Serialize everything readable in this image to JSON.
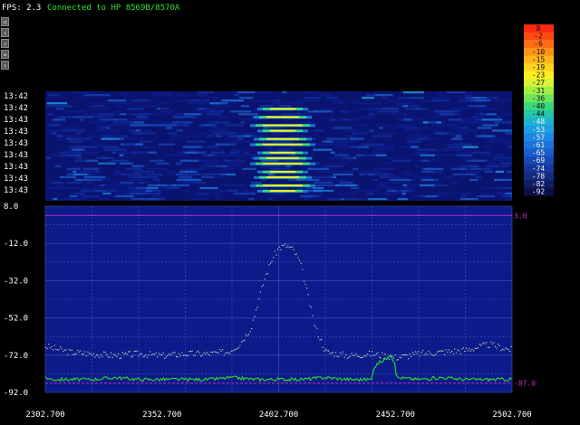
{
  "header": {
    "fps_label": "FPS: 2.3",
    "status": "Connected to HP 8569B/8570A"
  },
  "side_controls": [
    {
      "name": "collapse-all-button",
      "glyph": "«"
    },
    {
      "name": "step-left-button",
      "glyph": "‹"
    },
    {
      "name": "step-right-button",
      "glyph": "›"
    },
    {
      "name": "expand-all-button",
      "glyph": "»"
    }
  ],
  "waterfall": {
    "time_labels": [
      "13:42",
      "13:42",
      "13:43",
      "13:43",
      "13:43",
      "13:43",
      "13:43",
      "13:43",
      "13:43"
    ]
  },
  "legend": {
    "values": [
      "8",
      "-2",
      "-6",
      "-10",
      "-15",
      "-19",
      "-23",
      "-27",
      "-31",
      "-36",
      "-40",
      "-44",
      "-48",
      "-53",
      "-57",
      "-61",
      "-65",
      "-69",
      "-74",
      "-78",
      "-82",
      "-92"
    ],
    "colors": [
      "#ff2a10",
      "#ff4a12",
      "#ff6e15",
      "#ff9018",
      "#ffb51b",
      "#ffd41f",
      "#ffee22",
      "#d8f234",
      "#a4ee44",
      "#6fe45a",
      "#3cd67c",
      "#25c6a8",
      "#1cb4d0",
      "#1c9ee0",
      "#1d88e2",
      "#1c72d8",
      "#1a5cc8",
      "#1848b2",
      "#16389a",
      "#142c82",
      "#101e66",
      "#0a1048"
    ]
  },
  "spectrum": {
    "y_ticks": [
      "8.0",
      "-12.0",
      "-32.0",
      "-52.0",
      "-72.0",
      "-92.0"
    ],
    "x_ticks": [
      "2302.700",
      "2352.700",
      "2402.700",
      "2452.700",
      "2502.700"
    ],
    "ref_high_label": "3.0",
    "ref_low_label": "-87.0"
  },
  "chart_data": {
    "type": "line",
    "x_range": [
      2302.7,
      2502.7
    ],
    "ylim": [
      -92,
      8
    ],
    "ref_lines": [
      3.0,
      -87.0
    ],
    "series": [
      {
        "style": "dots",
        "color": "#e8e8b0",
        "x": [
          2302.7,
          2312.7,
          2322.7,
          2332.7,
          2342.7,
          2352.7,
          2362.7,
          2372.7,
          2380.7,
          2385.7,
          2390.7,
          2393.7,
          2396.7,
          2399.7,
          2402.7,
          2405.7,
          2408.7,
          2411.7,
          2414.7,
          2417.7,
          2422.7,
          2432.7,
          2442.7,
          2452.7,
          2462.7,
          2472.7,
          2482.7,
          2492.7,
          2502.7
        ],
        "y": [
          -67,
          -70,
          -71,
          -72,
          -71,
          -72,
          -71,
          -71,
          -70,
          -66,
          -57,
          -43,
          -30,
          -20,
          -14,
          -13,
          -15,
          -22,
          -38,
          -55,
          -70,
          -72,
          -71,
          -73,
          -71,
          -70,
          -69,
          -66,
          -69
        ]
      },
      {
        "style": "line",
        "color": "#28e028",
        "x": [
          2302.7,
          2305.7,
          2312.7,
          2322.7,
          2332.7,
          2342.7,
          2352.7,
          2362.7,
          2372.7,
          2382.7,
          2392.7,
          2402.7,
          2412.7,
          2422.7,
          2432.7,
          2442.7,
          2443.2,
          2445.7,
          2448.7,
          2450.7,
          2452.7,
          2453.2,
          2462.7,
          2472.7,
          2482.7,
          2492.7,
          2502.7
        ],
        "y": [
          -84,
          -85,
          -85,
          -85,
          -84,
          -85,
          -85,
          -85,
          -85,
          -84,
          -85,
          -85,
          -85,
          -84,
          -85,
          -85,
          -79,
          -76,
          -74,
          -71,
          -78,
          -84,
          -85,
          -84,
          -85,
          -85,
          -85
        ]
      }
    ]
  }
}
